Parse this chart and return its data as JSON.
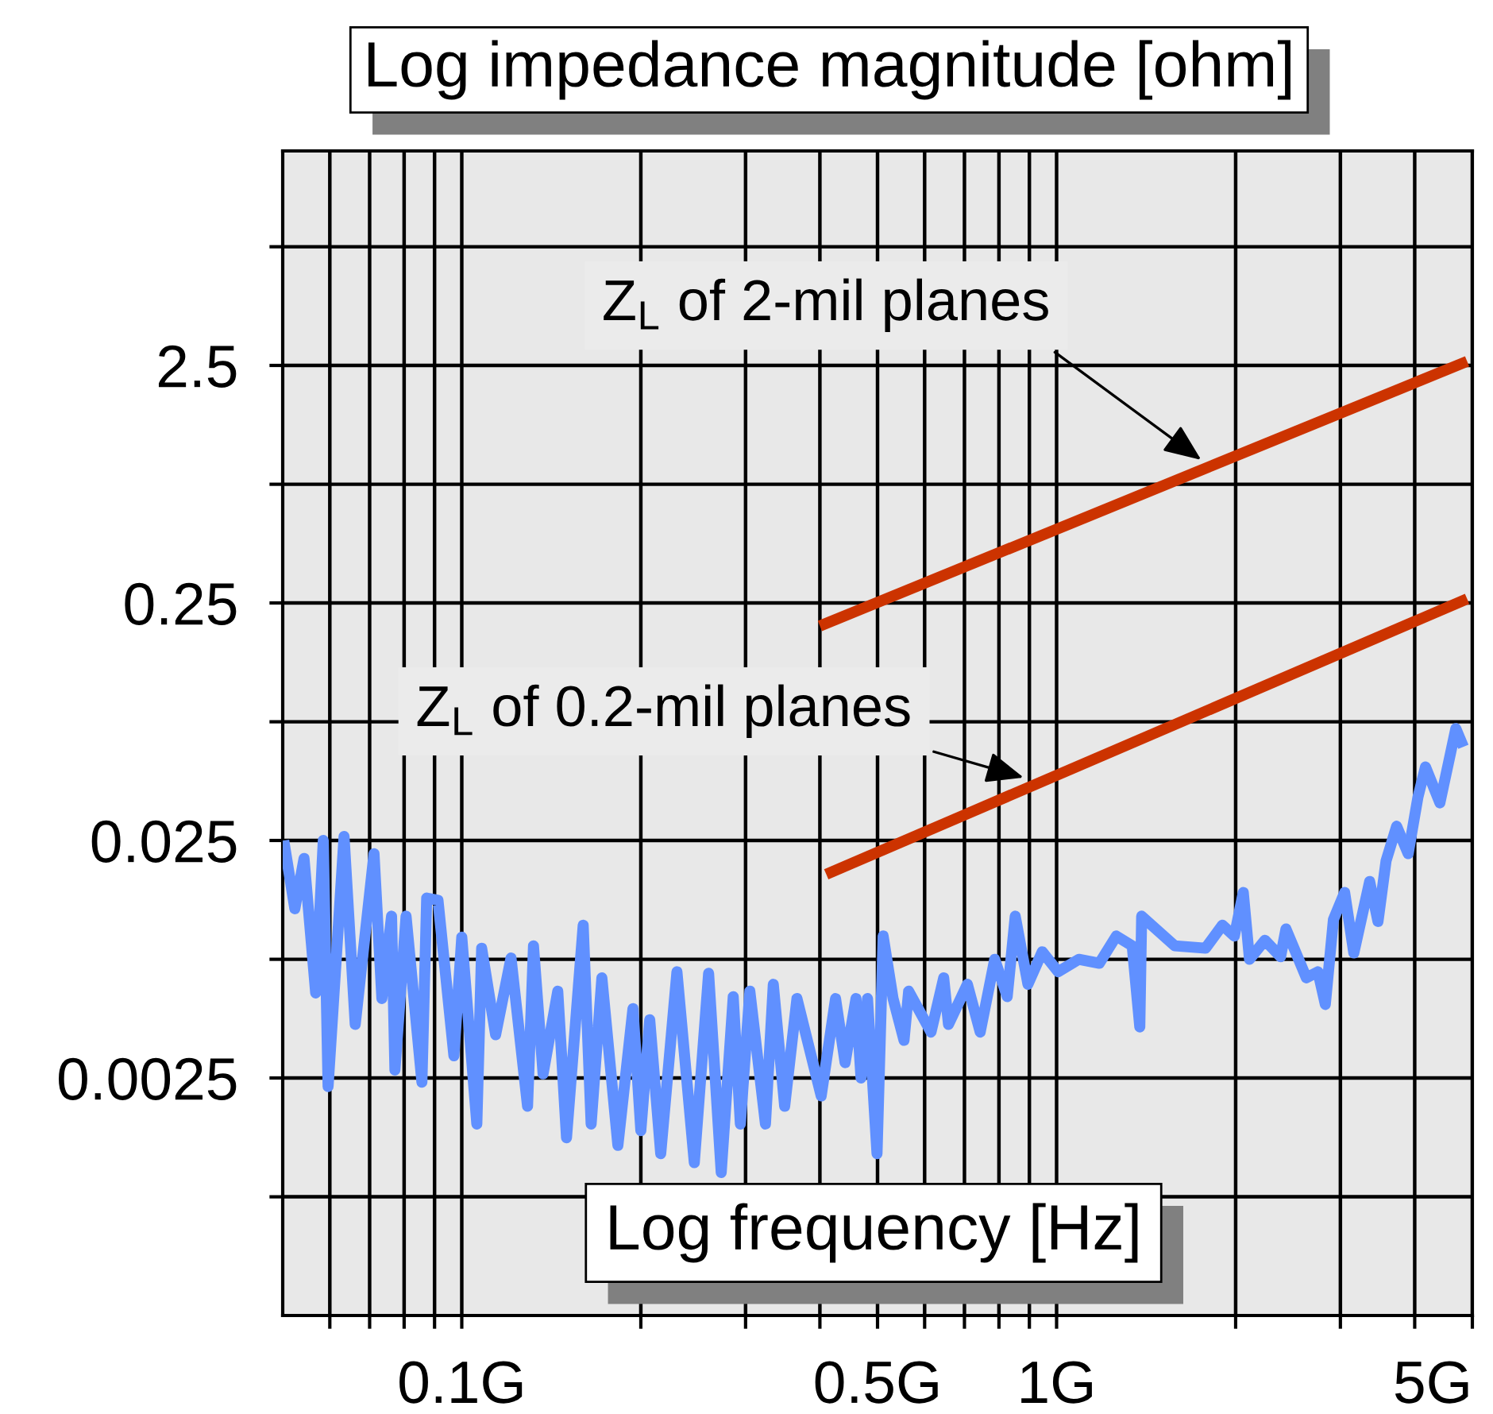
{
  "chart_data": {
    "type": "line",
    "title": "Log impedance magnitude [ohm]",
    "xlabel": "Log frequency [Hz]",
    "log": "xy",
    "grid": true,
    "line_style": "solid",
    "xlim": [
      0.05,
      5
    ],
    "xticks": [
      {
        "value": 0.06,
        "label": null
      },
      {
        "value": 0.07,
        "label": null
      },
      {
        "value": 0.08,
        "label": null
      },
      {
        "value": 0.09,
        "label": null
      },
      {
        "value": 0.1,
        "label": "0.1G"
      },
      {
        "value": 0.2,
        "label": null
      },
      {
        "value": 0.3,
        "label": null
      },
      {
        "value": 0.4,
        "label": null
      },
      {
        "value": 0.5,
        "label": "0.5G"
      },
      {
        "value": 0.6,
        "label": null
      },
      {
        "value": 0.7,
        "label": null
      },
      {
        "value": 0.8,
        "label": null
      },
      {
        "value": 0.9,
        "label": null
      },
      {
        "value": 1,
        "label": "1G"
      },
      {
        "value": 2,
        "label": null
      },
      {
        "value": 3,
        "label": null
      },
      {
        "value": 4,
        "label": null
      },
      {
        "value": 5,
        "label": "5G"
      }
    ],
    "ylim": [
      0.00025,
      20
    ],
    "yticks": [
      {
        "value": 0.00079,
        "label": null
      },
      0.0025,
      {
        "value": 0.0079,
        "label": null
      },
      0.025,
      {
        "value": 0.079,
        "label": null
      },
      0.25,
      {
        "value": 0.79,
        "label": null
      },
      2.5,
      {
        "value": 7.9,
        "label": null
      }
    ],
    "series": [
      {
        "color": "#6090ff",
        "x": [
          0.0502,
          0.0524,
          0.0543,
          0.0568,
          0.0585,
          0.0596,
          0.0634,
          0.0662,
          0.0712,
          0.0734,
          0.0762,
          0.0772,
          0.0806,
          0.0857,
          0.0873,
          0.0912,
          0.097,
          0.1,
          0.106,
          0.108,
          0.114,
          0.121,
          0.129,
          0.132,
          0.137,
          0.145,
          0.15,
          0.16,
          0.165,
          0.172,
          0.183,
          0.194,
          0.2,
          0.207,
          0.216,
          0.23,
          0.246,
          0.26,
          0.273,
          0.286,
          0.294,
          0.305,
          0.324,
          0.334,
          0.349,
          0.366,
          0.402,
          0.425,
          0.441,
          0.46,
          0.469,
          0.481,
          0.499,
          0.511,
          0.531,
          0.554,
          0.564,
          0.615,
          0.646,
          0.658,
          0.708,
          0.744,
          0.787,
          0.826,
          0.852,
          0.895,
          0.946,
          1.006,
          1.09,
          1.18,
          1.26,
          1.34,
          1.38,
          1.39,
          1.58,
          1.78,
          1.9,
          1.99,
          2.06,
          2.11,
          2.24,
          2.38,
          2.43,
          2.63,
          2.75,
          2.83,
          2.92,
          3.05,
          3.16,
          3.36,
          3.47,
          3.58,
          3.73,
          3.9,
          4.05,
          4.17,
          4.41,
          4.69,
          4.83
        ],
        "values": [
          0.025,
          0.0129,
          0.021,
          0.0057,
          0.025,
          0.0023,
          0.026,
          0.0042,
          0.022,
          0.0054,
          0.012,
          0.0027,
          0.012,
          0.0024,
          0.0143,
          0.014,
          0.0031,
          0.0098,
          0.0016,
          0.0088,
          0.0038,
          0.008,
          0.0019,
          0.009,
          0.0026,
          0.0058,
          0.0014,
          0.011,
          0.0016,
          0.0066,
          0.0013,
          0.0049,
          0.0015,
          0.0044,
          0.0012,
          0.007,
          0.0011,
          0.0069,
          0.001,
          0.0055,
          0.0016,
          0.0058,
          0.0016,
          0.0062,
          0.0019,
          0.0054,
          0.0021,
          0.0054,
          0.0029,
          0.0054,
          0.0025,
          0.0054,
          0.0012,
          0.0099,
          0.0054,
          0.0036,
          0.0058,
          0.0039,
          0.0066,
          0.0042,
          0.0062,
          0.0039,
          0.0079,
          0.0055,
          0.012,
          0.0062,
          0.0085,
          0.007,
          0.0079,
          0.0076,
          0.0099,
          0.009,
          0.0041,
          0.012,
          0.009,
          0.0088,
          0.011,
          0.0099,
          0.0151,
          0.0079,
          0.0095,
          0.0081,
          0.0106,
          0.0066,
          0.007,
          0.0051,
          0.0116,
          0.0151,
          0.0084,
          0.0168,
          0.0114,
          0.0205,
          0.0287,
          0.022,
          0.038,
          0.051,
          0.036,
          0.074,
          0.062
        ]
      },
      {
        "color": "#cc3300",
        "x": [
          0.4,
          4.9
        ],
        "values": [
          0.2,
          2.6
        ]
      },
      {
        "color": "#cc3300",
        "x": [
          0.41,
          4.9
        ],
        "values": [
          0.018,
          0.26
        ]
      }
    ],
    "annotations": [
      {
        "text": "Z$_{L}$ of 2-mil planes",
        "x": 1.75,
        "y": 1.0
      },
      {
        "text": "Z$_{L}$ of 0.2-mil planes",
        "x": 0.88,
        "y": 0.046
      }
    ]
  }
}
